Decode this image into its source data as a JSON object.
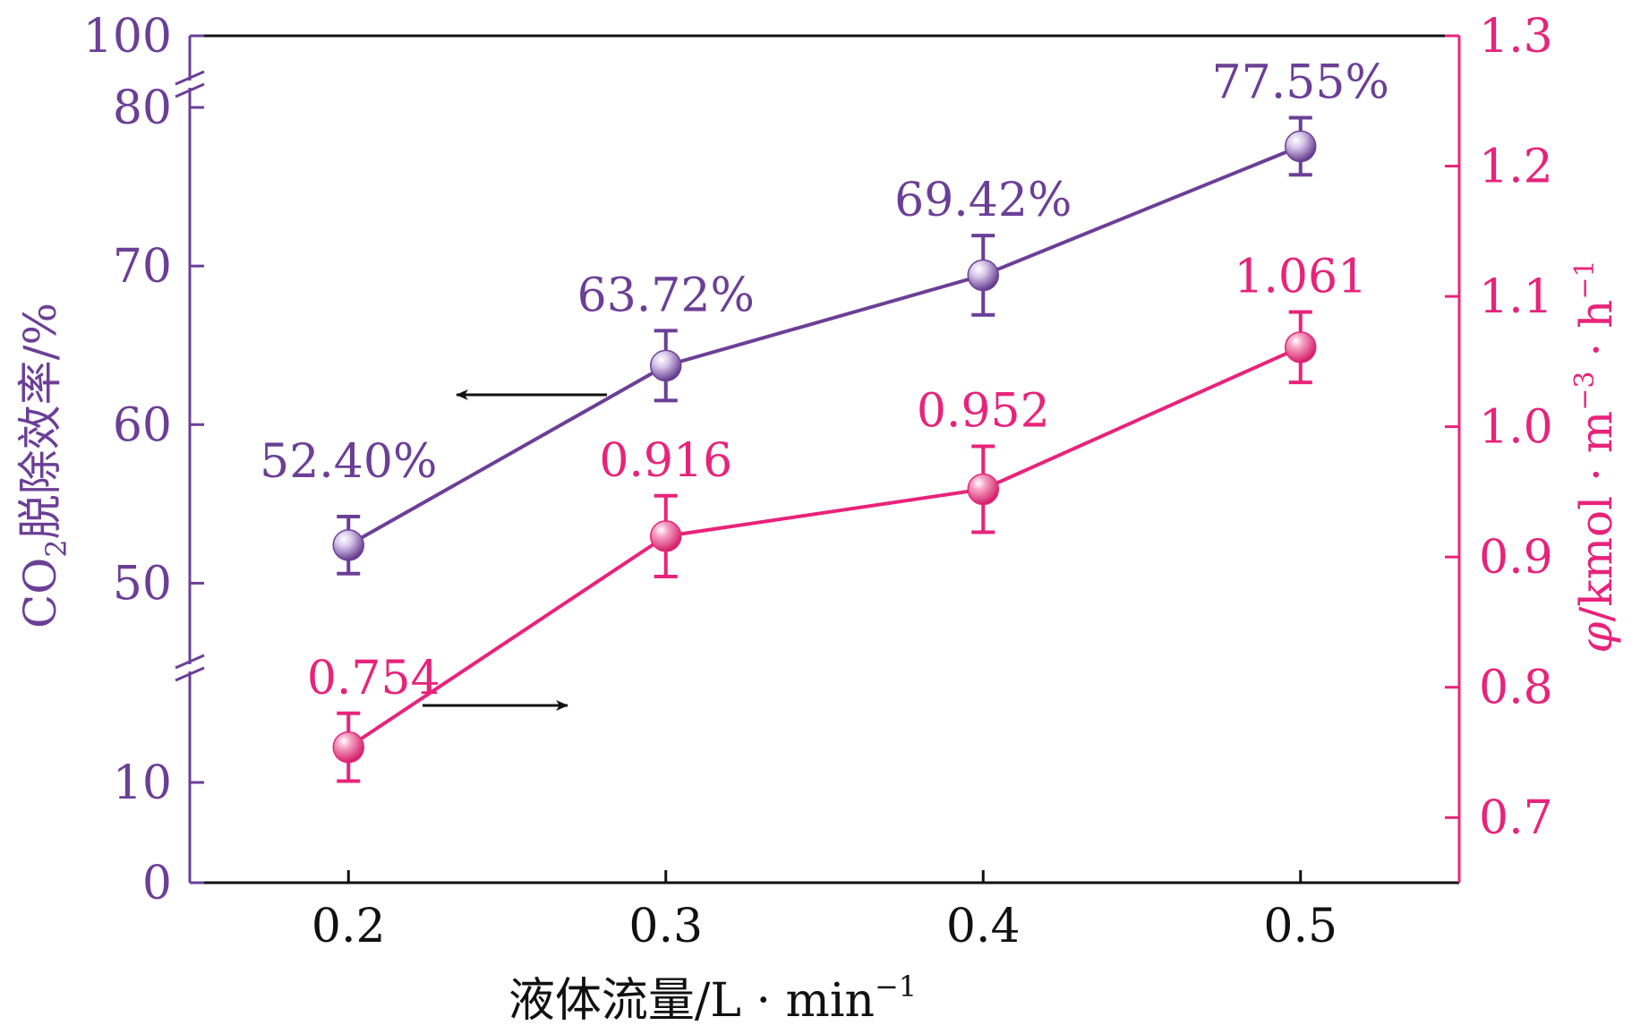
{
  "chart_data": {
    "type": "line",
    "categories": [
      "0.2",
      "0.3",
      "0.4",
      "0.5"
    ],
    "x": [
      0.2,
      0.3,
      0.4,
      0.5
    ],
    "xlabel": {
      "main": "液体流量/L · min",
      "sup": "−1"
    },
    "ylabel_left": {
      "pre": "CO",
      "sub": "2",
      "post": "脱除效率/%"
    },
    "ylabel_right": {
      "phi": "φ",
      "a": "/kmol · m",
      "sup1": "−3",
      "b": " · h",
      "sup2": "−1"
    },
    "left_axis": {
      "ticks": [
        "0",
        "10",
        "50",
        "60",
        "70",
        "80",
        "100"
      ],
      "broken": true,
      "segments": [
        [
          0,
          10
        ],
        [
          45,
          80
        ],
        [
          100,
          100
        ]
      ]
    },
    "right_axis": {
      "ylim": [
        0.65,
        1.3
      ],
      "ticks": [
        "0.7",
        "0.8",
        "0.9",
        "1.0",
        "1.1",
        "1.2",
        "1.3"
      ]
    },
    "xlim": [
      0.15,
      0.55
    ],
    "x_ticks": [
      "0.2",
      "0.3",
      "0.4",
      "0.5"
    ],
    "grid": false,
    "series": [
      {
        "axis": "left",
        "color": "#6b3f96",
        "values": [
          52.4,
          63.72,
          69.42,
          77.55
        ],
        "error": [
          1.8,
          2.2,
          2.5,
          1.8
        ],
        "labels": [
          "52.40%",
          "63.72%",
          "69.42%",
          "77.55%"
        ],
        "arrow": "left"
      },
      {
        "axis": "right",
        "color": "#e8237a",
        "values": [
          0.754,
          0.916,
          0.952,
          1.061
        ],
        "error": [
          0.026,
          0.031,
          0.033,
          0.027
        ],
        "labels": [
          "0.754",
          "0.916",
          "0.952",
          "1.061"
        ],
        "arrow": "right"
      }
    ]
  }
}
